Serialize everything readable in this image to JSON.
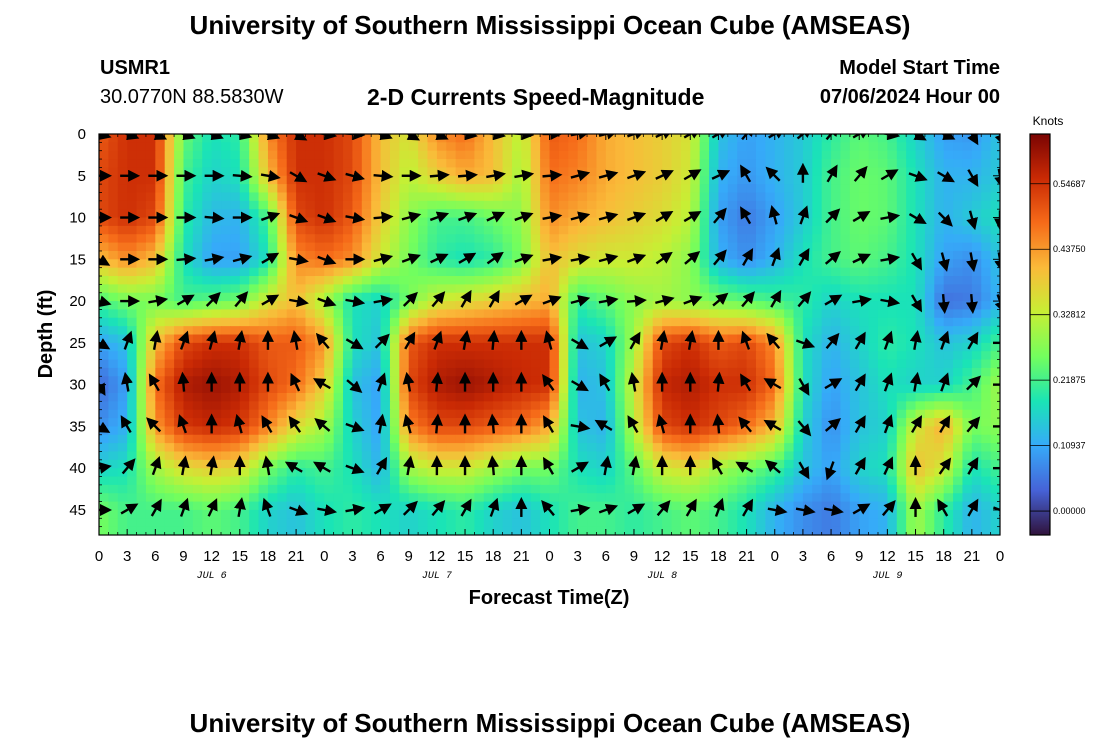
{
  "header": {
    "title": "University of Southern Mississippi Ocean Cube (AMSEAS)",
    "station": "USMR1",
    "coordinates": "30.0770N  88.5830W",
    "chart_title": "2-D Currents Speed-Magnitude",
    "model_start_label": "Model Start Time",
    "model_start_value": "07/06/2024 Hour 00"
  },
  "footer": {
    "title": "University of Southern Mississippi Ocean Cube (AMSEAS)"
  },
  "colors": {
    "scale": [
      "#30123b",
      "#4662d7",
      "#36aaf9",
      "#1ae4b6",
      "#72fe5e",
      "#c7ef34",
      "#faba39",
      "#f66b19",
      "#ca2a04",
      "#7a0403"
    ]
  },
  "chart_data": {
    "type": "heatmap",
    "title": "2-D Currents Speed-Magnitude",
    "xlabel": "Forecast Time(Z)",
    "ylabel": "Depth (ft)",
    "x_tick_labels": [
      "0",
      "3",
      "6",
      "9",
      "12",
      "15",
      "18",
      "21",
      "0",
      "3",
      "6",
      "9",
      "12",
      "15",
      "18",
      "21",
      "0",
      "3",
      "6",
      "9",
      "12",
      "15",
      "18",
      "21",
      "0",
      "3",
      "6",
      "9",
      "12",
      "15",
      "18",
      "21",
      "0"
    ],
    "x_range_hours": [
      0,
      96
    ],
    "date_labels": [
      {
        "text": "JUL 6",
        "hour": 12
      },
      {
        "text": "JUL 7",
        "hour": 36
      },
      {
        "text": "JUL 8",
        "hour": 60
      },
      {
        "text": "JUL 9",
        "hour": 84
      }
    ],
    "y_ticks": [
      0,
      5,
      10,
      15,
      20,
      25,
      30,
      35,
      40,
      45
    ],
    "y_range_ft": [
      0,
      48
    ],
    "colorbar": {
      "label": "Knots",
      "range": [
        -0.04,
        0.63
      ],
      "ticks": [
        {
          "value": 0.0,
          "label": "0.00000"
        },
        {
          "value": 0.109375,
          "label": "0.10937"
        },
        {
          "value": 0.21875,
          "label": "0.21875"
        },
        {
          "value": 0.328125,
          "label": "0.32812"
        },
        {
          "value": 0.4375,
          "label": "0.43750"
        },
        {
          "value": 0.546875,
          "label": "0.54687"
        }
      ]
    },
    "speed_field": {
      "hours": [
        0,
        3,
        6,
        9,
        12,
        15,
        18,
        21,
        24,
        27,
        30,
        33,
        36,
        39,
        42,
        45,
        48,
        51,
        54,
        57,
        60,
        63,
        66,
        69,
        72,
        75,
        78,
        81,
        84,
        87,
        90,
        93,
        96
      ],
      "depths": [
        0,
        5,
        10,
        15,
        20,
        25,
        30,
        35,
        40,
        45
      ],
      "values": [
        [
          0.5,
          0.55,
          0.55,
          0.25,
          0.18,
          0.2,
          0.45,
          0.55,
          0.55,
          0.52,
          0.4,
          0.35,
          0.45,
          0.48,
          0.4,
          0.32,
          0.5,
          0.48,
          0.42,
          0.4,
          0.38,
          0.35,
          0.14,
          0.1,
          0.12,
          0.15,
          0.2,
          0.24,
          0.22,
          0.16,
          0.1,
          0.09,
          0.14
        ],
        [
          0.52,
          0.55,
          0.55,
          0.22,
          0.16,
          0.18,
          0.4,
          0.55,
          0.55,
          0.52,
          0.4,
          0.32,
          0.38,
          0.42,
          0.4,
          0.3,
          0.48,
          0.46,
          0.42,
          0.4,
          0.38,
          0.34,
          0.12,
          0.09,
          0.12,
          0.15,
          0.22,
          0.25,
          0.24,
          0.18,
          0.12,
          0.12,
          0.15
        ],
        [
          0.52,
          0.55,
          0.52,
          0.2,
          0.13,
          0.12,
          0.22,
          0.52,
          0.55,
          0.5,
          0.38,
          0.28,
          0.22,
          0.22,
          0.25,
          0.28,
          0.45,
          0.42,
          0.4,
          0.38,
          0.36,
          0.32,
          0.1,
          0.06,
          0.1,
          0.15,
          0.22,
          0.25,
          0.24,
          0.18,
          0.12,
          0.15,
          0.18
        ],
        [
          0.4,
          0.45,
          0.4,
          0.18,
          0.1,
          0.1,
          0.18,
          0.45,
          0.48,
          0.45,
          0.34,
          0.26,
          0.2,
          0.18,
          0.2,
          0.26,
          0.4,
          0.36,
          0.34,
          0.34,
          0.32,
          0.28,
          0.12,
          0.08,
          0.12,
          0.18,
          0.22,
          0.24,
          0.22,
          0.18,
          0.1,
          0.08,
          0.14
        ],
        [
          0.22,
          0.26,
          0.26,
          0.22,
          0.24,
          0.26,
          0.35,
          0.4,
          0.3,
          0.18,
          0.16,
          0.26,
          0.34,
          0.36,
          0.38,
          0.4,
          0.42,
          0.2,
          0.24,
          0.28,
          0.3,
          0.28,
          0.26,
          0.24,
          0.22,
          0.2,
          0.16,
          0.18,
          0.18,
          0.18,
          0.05,
          0.06,
          0.12
        ],
        [
          0.1,
          0.14,
          0.4,
          0.52,
          0.55,
          0.55,
          0.5,
          0.5,
          0.44,
          0.18,
          0.14,
          0.5,
          0.55,
          0.55,
          0.55,
          0.55,
          0.55,
          0.14,
          0.16,
          0.3,
          0.52,
          0.55,
          0.5,
          0.52,
          0.45,
          0.18,
          0.12,
          0.16,
          0.2,
          0.18,
          0.14,
          0.16,
          0.22
        ],
        [
          0.04,
          0.1,
          0.48,
          0.58,
          0.6,
          0.58,
          0.52,
          0.48,
          0.38,
          0.14,
          0.1,
          0.52,
          0.58,
          0.6,
          0.58,
          0.56,
          0.55,
          0.12,
          0.14,
          0.34,
          0.56,
          0.58,
          0.55,
          0.55,
          0.48,
          0.18,
          0.1,
          0.14,
          0.18,
          0.16,
          0.16,
          0.22,
          0.3
        ],
        [
          0.08,
          0.12,
          0.44,
          0.54,
          0.56,
          0.54,
          0.46,
          0.36,
          0.3,
          0.16,
          0.1,
          0.46,
          0.52,
          0.52,
          0.5,
          0.48,
          0.42,
          0.14,
          0.12,
          0.32,
          0.52,
          0.55,
          0.52,
          0.48,
          0.4,
          0.16,
          0.08,
          0.14,
          0.16,
          0.34,
          0.42,
          0.26,
          0.28
        ],
        [
          0.16,
          0.18,
          0.3,
          0.36,
          0.38,
          0.36,
          0.26,
          0.2,
          0.22,
          0.18,
          0.12,
          0.3,
          0.34,
          0.34,
          0.3,
          0.26,
          0.26,
          0.18,
          0.16,
          0.24,
          0.34,
          0.36,
          0.3,
          0.26,
          0.22,
          0.14,
          0.1,
          0.16,
          0.18,
          0.4,
          0.34,
          0.18,
          0.22
        ],
        [
          0.26,
          0.22,
          0.22,
          0.22,
          0.24,
          0.22,
          0.16,
          0.14,
          0.18,
          0.2,
          0.18,
          0.16,
          0.18,
          0.2,
          0.16,
          0.14,
          0.18,
          0.22,
          0.22,
          0.2,
          0.22,
          0.24,
          0.22,
          0.18,
          0.12,
          0.08,
          0.06,
          0.1,
          0.12,
          0.3,
          0.2,
          0.12,
          0.16
        ]
      ]
    },
    "current_direction_deg": {
      "note": "arrow bearing, degrees clockwise from north; same grid as speed_field",
      "values": [
        [
          105,
          110,
          115,
          110,
          110,
          105,
          110,
          120,
          100,
          95,
          110,
          120,
          115,
          100,
          100,
          95,
          90,
          80,
          75,
          70,
          65,
          60,
          60,
          40,
          60,
          50,
          40,
          60,
          100,
          120,
          115,
          150,
          160
        ],
        [
          90,
          90,
          90,
          90,
          90,
          95,
          100,
          120,
          110,
          105,
          95,
          90,
          85,
          85,
          80,
          80,
          85,
          75,
          75,
          70,
          65,
          60,
          65,
          330,
          315,
          0,
          30,
          40,
          60,
          110,
          120,
          150,
          170
        ],
        [
          90,
          90,
          90,
          90,
          95,
          90,
          70,
          110,
          110,
          100,
          85,
          75,
          70,
          70,
          65,
          70,
          80,
          75,
          75,
          70,
          60,
          60,
          40,
          330,
          345,
          20,
          45,
          60,
          80,
          120,
          135,
          165,
          180
        ],
        [
          120,
          90,
          90,
          85,
          80,
          75,
          60,
          100,
          110,
          90,
          75,
          70,
          65,
          60,
          55,
          70,
          80,
          80,
          75,
          70,
          55,
          50,
          40,
          30,
          20,
          30,
          50,
          65,
          80,
          150,
          165,
          170,
          170
        ],
        [
          105,
          90,
          80,
          60,
          45,
          40,
          60,
          100,
          110,
          100,
          80,
          45,
          40,
          30,
          30,
          60,
          70,
          75,
          80,
          85,
          75,
          70,
          50,
          40,
          30,
          40,
          60,
          80,
          100,
          150,
          175,
          175,
          160
        ],
        [
          120,
          20,
          10,
          20,
          15,
          10,
          0,
          350,
          320,
          120,
          45,
          30,
          20,
          10,
          5,
          0,
          345,
          120,
          60,
          30,
          10,
          10,
          0,
          340,
          320,
          110,
          40,
          30,
          20,
          10,
          20,
          30,
          90
        ],
        [
          150,
          350,
          330,
          355,
          0,
          0,
          0,
          335,
          300,
          130,
          20,
          350,
          5,
          0,
          0,
          0,
          325,
          120,
          330,
          350,
          0,
          0,
          5,
          330,
          300,
          150,
          60,
          30,
          20,
          10,
          20,
          45,
          90
        ],
        [
          120,
          330,
          315,
          340,
          0,
          345,
          330,
          325,
          310,
          110,
          10,
          345,
          5,
          0,
          355,
          0,
          330,
          100,
          300,
          330,
          345,
          0,
          355,
          320,
          300,
          140,
          50,
          30,
          20,
          30,
          30,
          40,
          90
        ],
        [
          80,
          40,
          20,
          10,
          10,
          0,
          350,
          300,
          300,
          110,
          30,
          10,
          0,
          0,
          355,
          0,
          330,
          60,
          10,
          10,
          0,
          0,
          330,
          300,
          310,
          150,
          200,
          30,
          25,
          0,
          35,
          30,
          90
        ],
        [
          90,
          60,
          30,
          20,
          25,
          10,
          340,
          110,
          100,
          80,
          60,
          45,
          40,
          30,
          20,
          0,
          320,
          80,
          70,
          60,
          40,
          30,
          20,
          30,
          100,
          100,
          100,
          60,
          40,
          0,
          330,
          30,
          110
        ]
      ]
    }
  }
}
